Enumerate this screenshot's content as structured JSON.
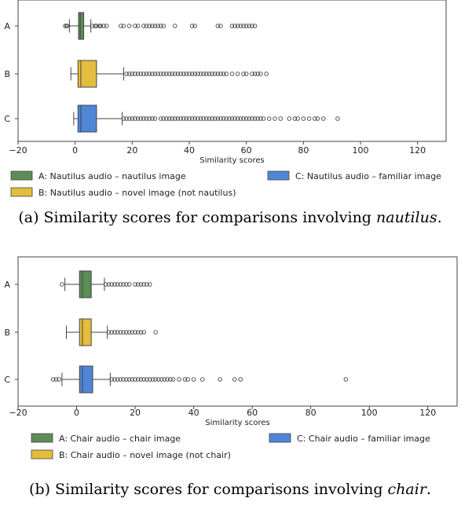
{
  "chart_data": [
    {
      "type": "boxplot",
      "orientation": "horizontal",
      "xlabel": "Similarity scores",
      "xlim": [
        -20,
        130
      ],
      "xticks": [
        -20,
        0,
        20,
        40,
        60,
        80,
        100,
        120
      ],
      "grid": false,
      "legend_placement": "bottom",
      "caption_prefix": "(a) Similarity scores for comparisons involving ",
      "caption_italic": "nautilus",
      "caption_suffix": ".",
      "series": [
        {
          "label": "A",
          "legend": "A: Nautilus audio – nautilus image",
          "color": "#5d8c57",
          "whisker_low": -2,
          "q1": 1.2,
          "median": 1.8,
          "q3": 3.0,
          "whisker_high": 5.5,
          "outliers": [
            -3.5,
            -3,
            -2.8,
            6,
            7,
            7.5,
            8.5,
            9,
            10,
            11,
            16,
            17,
            19,
            21,
            22,
            24,
            25,
            26,
            27,
            28,
            29,
            30,
            31,
            35,
            41,
            42,
            50,
            51,
            55,
            56,
            57,
            58,
            59,
            60,
            61,
            62,
            63
          ]
        },
        {
          "label": "B",
          "legend": "B: Nautilus audio – novel image (not nautilus)",
          "color": "#e3bd3d",
          "whisker_low": -1.5,
          "q1": 1,
          "median": 2,
          "q3": 7.5,
          "whisker_high": 17,
          "outliers": [
            18,
            19,
            20,
            21,
            22,
            23,
            24,
            25,
            26,
            27,
            28,
            29,
            30,
            31,
            32,
            33,
            34,
            35,
            36,
            37,
            38,
            39,
            40,
            41,
            42,
            43,
            44,
            45,
            46,
            47,
            48,
            49,
            50,
            51,
            52,
            53,
            55,
            57,
            59,
            60,
            62,
            63,
            64,
            65,
            67
          ]
        },
        {
          "label": "C",
          "legend": "C: Nautilus audio – familiar image",
          "color": "#4f86d8",
          "whisker_low": -0.5,
          "q1": 1,
          "median": 2,
          "q3": 7.5,
          "whisker_high": 16.5,
          "outliers": [
            17,
            18,
            19,
            20,
            21,
            22,
            23,
            24,
            25,
            26,
            27,
            28,
            30,
            31,
            32,
            33,
            34,
            35,
            36,
            37,
            38,
            39,
            40,
            41,
            42,
            43,
            44,
            45,
            46,
            47,
            48,
            49,
            50,
            51,
            52,
            53,
            54,
            55,
            56,
            57,
            58,
            59,
            60,
            61,
            62,
            63,
            64,
            65,
            66,
            68,
            70,
            72,
            75,
            77,
            78,
            80,
            82,
            84,
            85,
            87,
            92
          ]
        }
      ]
    },
    {
      "type": "boxplot",
      "orientation": "horizontal",
      "xlabel": "Similarity scores",
      "xlim": [
        -20,
        130
      ],
      "xticks": [
        -20,
        0,
        20,
        40,
        60,
        80,
        100,
        120
      ],
      "grid": false,
      "legend_placement": "bottom",
      "caption_prefix": "(b) Similarity scores for comparisons involving ",
      "caption_italic": "chair",
      "caption_suffix": ".",
      "series": [
        {
          "label": "A",
          "legend": "A: Chair audio – chair image",
          "color": "#5d8c57",
          "whisker_low": -4,
          "q1": 1,
          "median": 2,
          "q3": 5,
          "whisker_high": 9.5,
          "outliers": [
            -5,
            10,
            11,
            12,
            13,
            14,
            15,
            16,
            17,
            18,
            20,
            21,
            22,
            23,
            24,
            25
          ]
        },
        {
          "label": "B",
          "legend": "B: Chair audio – novel image (not chair)",
          "color": "#e3bd3d",
          "whisker_low": -3.5,
          "q1": 1,
          "median": 2,
          "q3": 5,
          "whisker_high": 10.5,
          "outliers": [
            11,
            12,
            13,
            14,
            15,
            16,
            17,
            18,
            19,
            20,
            21,
            22,
            23,
            27
          ]
        },
        {
          "label": "C",
          "legend": "C: Chair audio – familiar image",
          "color": "#4f86d8",
          "whisker_low": -5,
          "q1": 1,
          "median": 2,
          "q3": 5.5,
          "whisker_high": 11.5,
          "outliers": [
            -8,
            -7,
            -6,
            12,
            13,
            14,
            15,
            16,
            17,
            18,
            19,
            20,
            21,
            22,
            23,
            24,
            25,
            26,
            27,
            28,
            29,
            30,
            31,
            32,
            33,
            35,
            37,
            38,
            40,
            43,
            49,
            54,
            56,
            92
          ]
        }
      ]
    }
  ]
}
